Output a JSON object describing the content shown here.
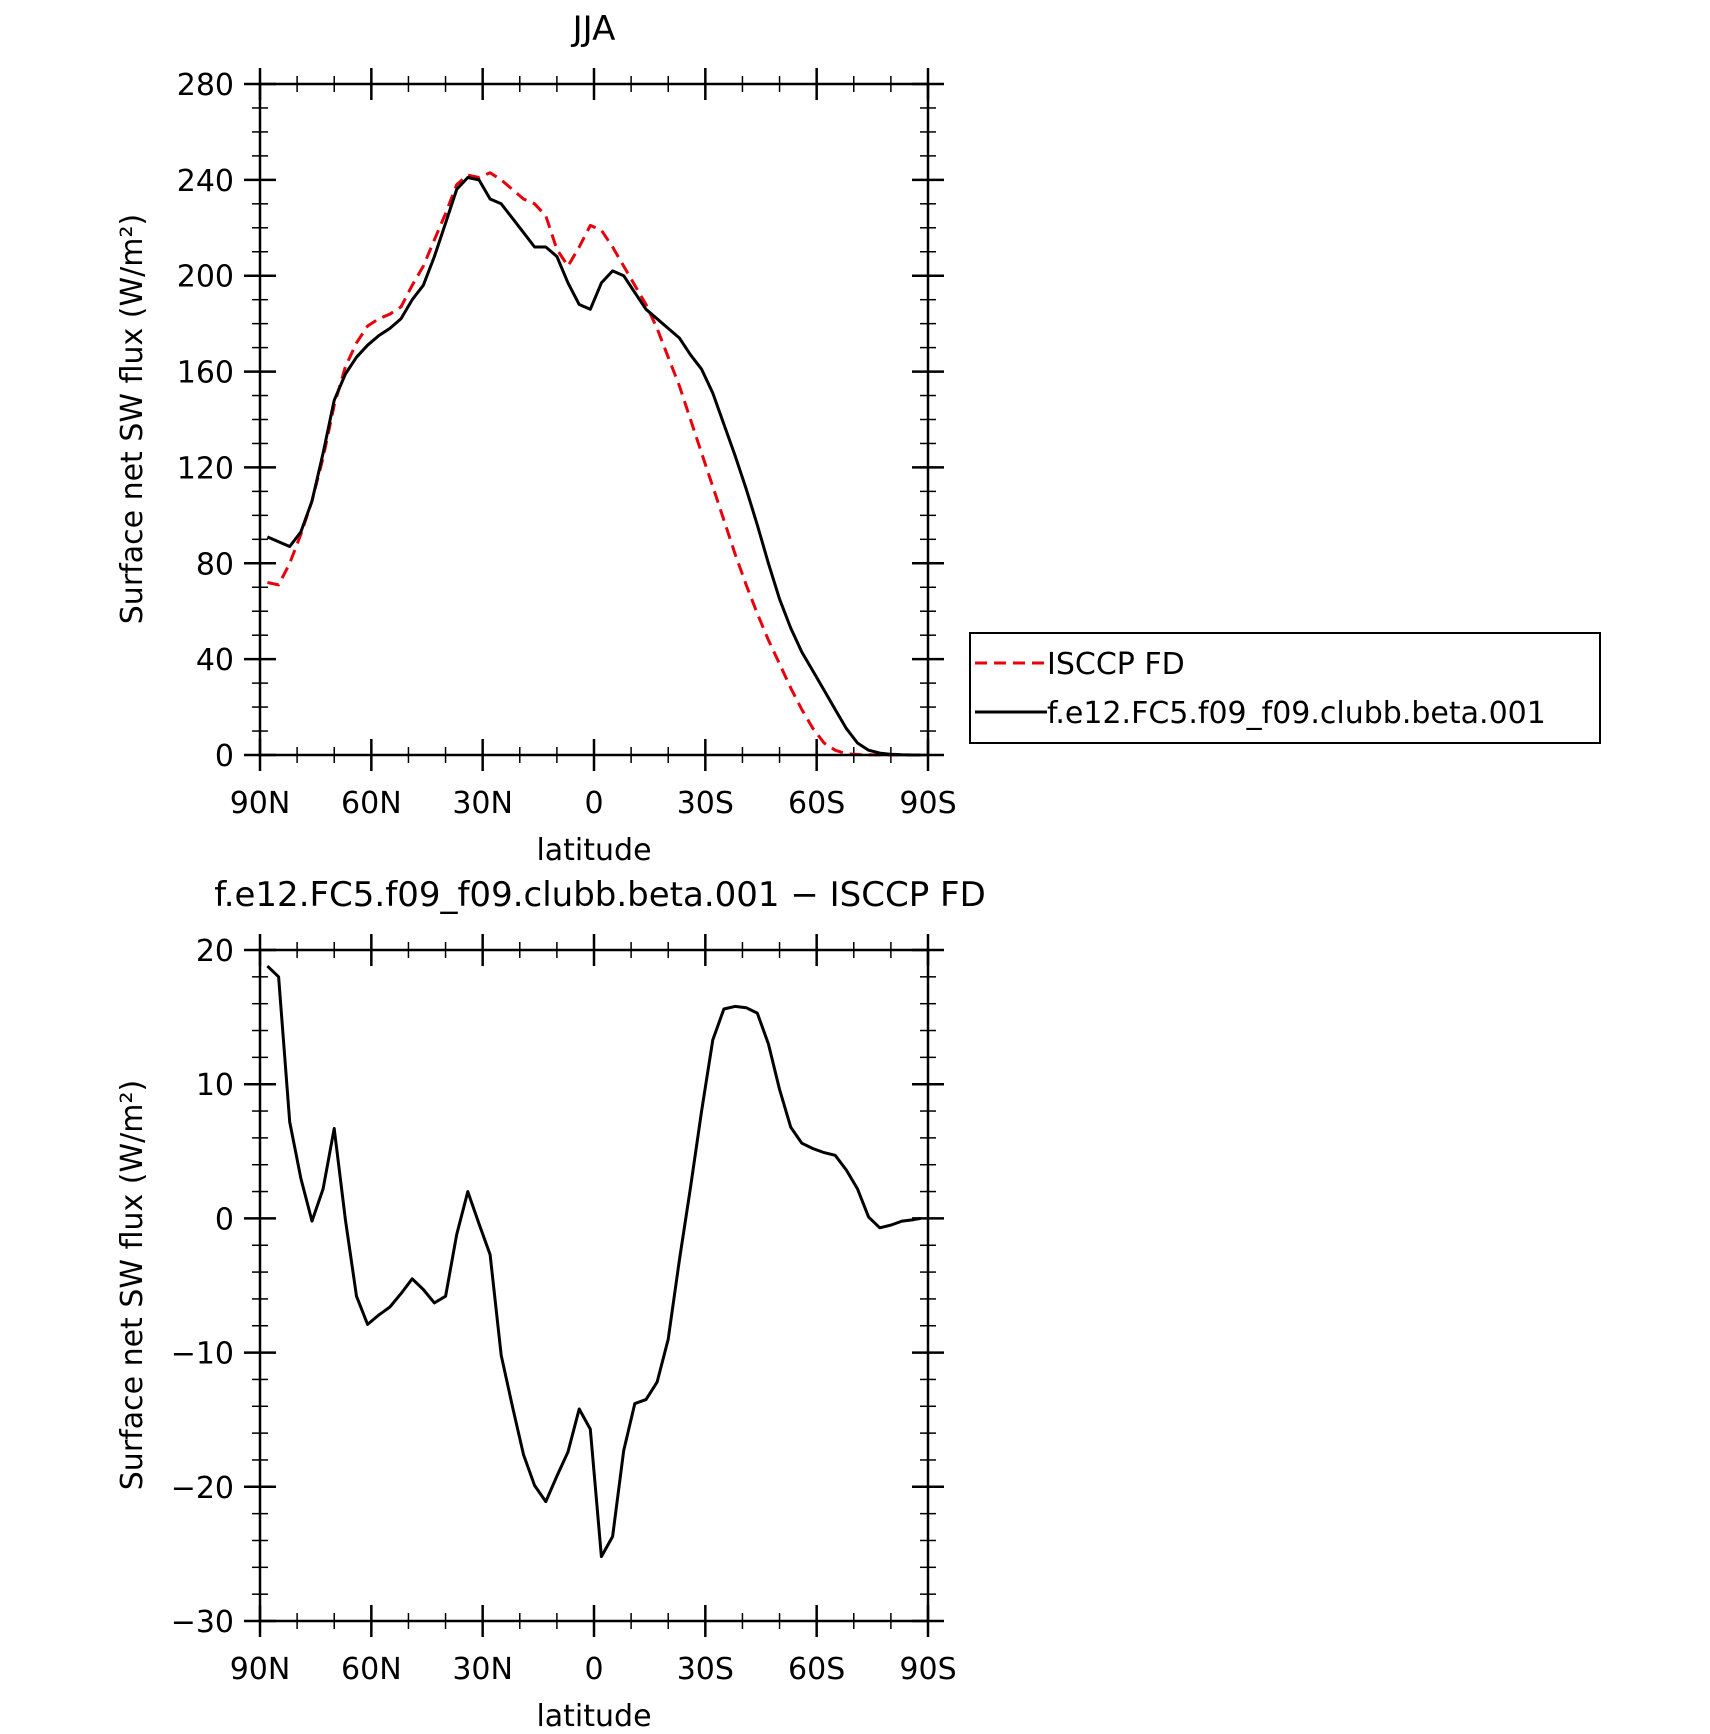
{
  "colors": {
    "obs": "#e8000b",
    "model": "#000000",
    "frame": "#000000"
  },
  "chart_data": [
    {
      "type": "line",
      "title": "JJA",
      "xlabel": "latitude",
      "ylabel": "Surface net SW flux (W/m²)",
      "xlim": [
        90,
        -90
      ],
      "ylim": [
        0,
        280
      ],
      "xticks": [
        90,
        60,
        30,
        0,
        -30,
        -60,
        -90
      ],
      "xtick_labels": [
        "90N",
        "60N",
        "30N",
        "0",
        "30S",
        "60S",
        "90S"
      ],
      "yticks": [
        0,
        40,
        80,
        120,
        160,
        200,
        240,
        280
      ],
      "ytick_labels": [
        "0",
        "40",
        "80",
        "120",
        "160",
        "200",
        "240",
        "280"
      ],
      "legend_position": "right",
      "legend": [
        "ISCCP FD",
        "f.e12.FC5.f09_f09.clubb.beta.001"
      ],
      "series": [
        {
          "name": "ISCCP FD",
          "style": "dashed",
          "color": "#e8000b",
          "x": [
            88,
            85,
            82,
            79,
            76,
            73,
            70,
            67,
            64,
            61,
            58,
            55,
            52,
            49,
            46,
            43,
            40,
            37,
            34,
            31,
            28,
            25,
            22,
            19,
            16,
            13,
            10,
            7,
            4,
            1,
            -2,
            -5,
            -8,
            -11,
            -14,
            -17,
            -20,
            -23,
            -26,
            -29,
            -32,
            -35,
            -38,
            -41,
            -44,
            -47,
            -50,
            -53,
            -56,
            -59,
            -62,
            -65,
            -68,
            -71,
            -74,
            -77,
            -80,
            -83,
            -86,
            -88
          ],
          "y": [
            72,
            71,
            80,
            92,
            106,
            124,
            146,
            162,
            172,
            179,
            182,
            184,
            187,
            196,
            204,
            215,
            226,
            238,
            242,
            241,
            243,
            240,
            236,
            232,
            230,
            225,
            211,
            204,
            212,
            221,
            219,
            212,
            204,
            196,
            188,
            178,
            166,
            154,
            140,
            126,
            112,
            98,
            84,
            71,
            59,
            48,
            38,
            28,
            19,
            11,
            5,
            2,
            0.5,
            0.2,
            0.1,
            0,
            0,
            0,
            0,
            0
          ]
        },
        {
          "name": "f.e12.FC5.f09_f09.clubb.beta.001",
          "style": "solid",
          "color": "#000000",
          "x": [
            88,
            85,
            82,
            79,
            76,
            73,
            70,
            67,
            64,
            61,
            58,
            55,
            52,
            49,
            46,
            43,
            40,
            37,
            34,
            31,
            28,
            25,
            22,
            19,
            16,
            13,
            10,
            7,
            4,
            1,
            -2,
            -5,
            -8,
            -11,
            -14,
            -17,
            -20,
            -23,
            -26,
            -29,
            -32,
            -35,
            -38,
            -41,
            -44,
            -47,
            -50,
            -53,
            -56,
            -59,
            -62,
            -65,
            -68,
            -71,
            -74,
            -77,
            -80,
            -83,
            -86,
            -88
          ],
          "y": [
            91,
            89,
            87,
            93,
            106,
            126,
            148,
            159,
            166,
            171,
            175,
            178,
            182,
            190,
            196,
            208,
            222,
            236,
            241,
            240,
            232,
            230,
            224,
            218,
            212,
            212,
            208,
            197,
            188,
            186,
            197,
            202,
            200,
            193,
            186,
            182,
            178,
            174,
            167,
            161,
            151,
            138,
            125,
            111,
            96,
            80,
            65,
            53,
            43,
            35,
            27,
            19,
            11,
            5,
            2,
            0.8,
            0.3,
            0.1,
            0,
            0
          ]
        }
      ]
    },
    {
      "type": "line",
      "title": "f.e12.FC5.f09_f09.clubb.beta.001 − ISCCP FD",
      "xlabel": "latitude",
      "ylabel": "Surface net SW flux (W/m²)",
      "xlim": [
        90,
        -90
      ],
      "ylim": [
        -30,
        20
      ],
      "xticks": [
        90,
        60,
        30,
        0,
        -30,
        -60,
        -90
      ],
      "xtick_labels": [
        "90N",
        "60N",
        "30N",
        "0",
        "30S",
        "60S",
        "90S"
      ],
      "yticks": [
        -30,
        -20,
        -10,
        0,
        10,
        20
      ],
      "ytick_labels": [
        "−30",
        "−20",
        "−10",
        "0",
        "10",
        "20"
      ],
      "series": [
        {
          "style": "solid",
          "color": "#000000",
          "x": [
            88,
            85,
            82,
            79,
            76,
            73,
            70,
            67,
            64,
            61,
            58,
            55,
            52,
            49,
            46,
            43,
            40,
            37,
            34,
            31,
            28,
            25,
            22,
            19,
            16,
            13,
            10,
            7,
            4,
            1,
            -2,
            -5,
            -8,
            -11,
            -14,
            -17,
            -20,
            -23,
            -26,
            -29,
            -32,
            -35,
            -38,
            -41,
            -44,
            -47,
            -50,
            -53,
            -56,
            -59,
            -62,
            -65,
            -68,
            -71,
            -74,
            -77,
            -80,
            -83,
            -86,
            -88
          ],
          "y": [
            18.8,
            18,
            7.2,
            3,
            -0.2,
            2.2,
            6.7,
            -0.1,
            -5.8,
            -7.9,
            -7.2,
            -6.6,
            -5.6,
            -4.5,
            -5.3,
            -6.3,
            -5.8,
            -1.2,
            2,
            -0.4,
            -2.7,
            -10.2,
            -14,
            -17.6,
            -19.9,
            -21.1,
            -19.2,
            -17.4,
            -14.2,
            -15.7,
            -25.2,
            -23.7,
            -17.3,
            -13.8,
            -13.5,
            -12.2,
            -9,
            -3.1,
            2.3,
            8,
            13.3,
            15.6,
            15.8,
            15.7,
            15.3,
            13,
            9.6,
            6.8,
            5.6,
            5.2,
            4.9,
            4.7,
            3.6,
            2.2,
            0.1,
            -0.7,
            -0.5,
            -0.2,
            -0.1,
            0
          ]
        }
      ]
    }
  ]
}
